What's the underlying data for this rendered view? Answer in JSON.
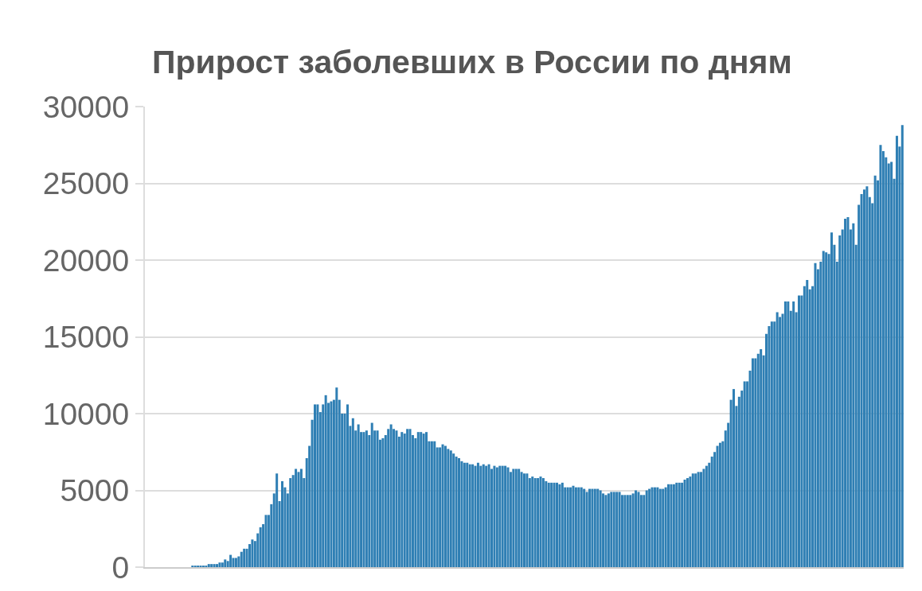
{
  "chart_data": {
    "type": "bar",
    "title": "Прирост заболевших в России по дням",
    "categories": [
      null,
      null,
      null,
      null,
      null,
      null,
      null,
      null,
      null,
      null,
      null,
      null,
      null,
      null,
      null,
      null,
      null,
      null,
      null,
      null,
      null,
      null,
      null,
      null,
      null,
      null,
      null,
      null,
      null,
      null,
      null,
      null,
      null,
      null,
      null,
      null,
      null,
      null,
      null,
      null,
      null,
      null,
      null,
      null,
      null,
      null,
      null,
      null,
      null,
      null,
      null,
      null,
      null,
      null,
      null,
      null,
      null,
      null,
      null,
      null,
      null,
      null,
      null,
      null,
      null,
      null,
      null,
      null,
      null,
      null,
      null,
      null,
      null,
      null,
      null,
      null,
      null,
      null,
      null,
      null,
      null,
      null,
      null,
      null,
      null,
      null,
      null,
      null,
      null,
      null,
      null,
      null,
      null,
      null,
      null,
      null,
      null,
      null,
      null,
      null,
      null,
      null,
      null,
      null,
      null,
      null,
      null,
      null,
      null,
      null,
      null,
      null,
      null,
      null,
      null,
      null,
      null,
      null,
      null,
      null,
      null,
      null,
      null,
      null,
      null,
      null,
      null,
      null,
      null,
      null,
      null,
      null,
      null,
      null,
      null,
      null,
      null,
      null,
      null,
      null,
      null,
      null,
      null,
      null,
      null,
      null,
      null,
      null,
      null,
      null,
      null,
      null,
      null,
      null,
      null,
      null,
      null,
      null,
      null,
      null,
      null,
      null,
      null,
      null,
      null,
      null,
      null,
      null,
      null,
      null,
      null,
      null,
      null,
      null,
      null,
      null,
      null,
      null,
      null,
      null,
      null,
      null,
      null,
      null,
      null,
      null,
      null,
      null,
      null,
      null,
      null,
      null,
      null,
      null,
      null,
      null,
      null,
      null,
      null,
      null,
      null,
      null,
      null,
      null,
      null,
      null,
      null,
      null,
      null,
      null,
      null,
      null,
      null,
      null,
      null,
      null,
      null,
      null,
      null,
      null,
      null,
      null,
      null,
      null,
      null,
      null,
      null,
      null,
      null,
      null,
      null,
      null,
      null,
      null,
      null,
      null,
      null,
      null,
      null,
      null,
      null,
      null,
      null,
      null,
      null,
      null,
      null,
      null,
      null,
      null,
      null,
      null,
      null,
      null,
      null,
      null,
      null,
      null,
      null,
      null,
      null,
      null,
      null,
      null,
      null,
      null,
      null,
      null,
      null,
      null,
      null,
      null,
      null,
      null,
      null,
      null,
      null,
      null,
      null
    ],
    "values": [
      0,
      0,
      0,
      0,
      0,
      0,
      0,
      0,
      0,
      0,
      0,
      0,
      0,
      0,
      0,
      0,
      0,
      100,
      100,
      100,
      100,
      100,
      100,
      200,
      200,
      200,
      200,
      300,
      300,
      500,
      400,
      800,
      600,
      600,
      700,
      1000,
      1200,
      1200,
      1500,
      1800,
      1700,
      2200,
      2600,
      2800,
      3400,
      3400,
      4100,
      4800,
      6100,
      4300,
      5600,
      5200,
      4800,
      5800,
      6000,
      6400,
      6200,
      6400,
      5800,
      7100,
      7900,
      9600,
      10600,
      10600,
      10100,
      10600,
      11200,
      10700,
      10800,
      10900,
      11700,
      10900,
      10000,
      10000,
      10600,
      9200,
      9700,
      8900,
      9300,
      8800,
      8800,
      8900,
      8600,
      9400,
      8900,
      8900,
      8300,
      8400,
      8600,
      9000,
      9300,
      9000,
      8900,
      8500,
      8800,
      8700,
      9000,
      9000,
      8600,
      8400,
      8800,
      8800,
      8700,
      8800,
      8200,
      8200,
      8200,
      7800,
      7800,
      8000,
      7900,
      7700,
      7600,
      7400,
      7200,
      7100,
      6900,
      6800,
      6800,
      6700,
      6700,
      6600,
      6800,
      6600,
      6700,
      6600,
      6700,
      6400,
      6600,
      6500,
      6600,
      6600,
      6600,
      6500,
      6200,
      6400,
      6400,
      6400,
      6200,
      6100,
      6100,
      5800,
      5900,
      5800,
      5800,
      5900,
      5800,
      5600,
      5500,
      5500,
      5500,
      5500,
      5400,
      5500,
      5200,
      5200,
      5200,
      5300,
      5200,
      5200,
      5200,
      5100,
      4900,
      5100,
      5100,
      5100,
      5100,
      5000,
      4800,
      4700,
      4800,
      4900,
      4900,
      4900,
      4900,
      4700,
      4700,
      4700,
      4700,
      4800,
      5000,
      4900,
      4700,
      4700,
      5000,
      5100,
      5200,
      5200,
      5200,
      5100,
      5100,
      5200,
      5400,
      5400,
      5400,
      5500,
      5500,
      5500,
      5700,
      5800,
      5900,
      6100,
      6100,
      6200,
      6200,
      6400,
      6600,
      6800,
      7200,
      7500,
      7900,
      8100,
      8200,
      8900,
      9400,
      10900,
      11600,
      10500,
      11100,
      11500,
      12100,
      12100,
      12800,
      13600,
      13600,
      13900,
      14200,
      13800,
      15200,
      15700,
      16000,
      16000,
      16600,
      16300,
      16500,
      17300,
      17300,
      16700,
      17300,
      16600,
      17700,
      17700,
      18300,
      18700,
      18100,
      18300,
      19800,
      19400,
      19900,
      20600,
      20500,
      20400,
      21800,
      21000,
      19900,
      21600,
      22000,
      22700,
      22800,
      22000,
      22400,
      21000,
      23600,
      24300,
      24600,
      24800,
      24100,
      23700,
      25500,
      25200,
      27500,
      27100,
      26700,
      26300,
      26400,
      25300,
      28100,
      27400,
      28800
    ],
    "color": "#2f7fb4",
    "ylim": [
      0,
      30000
    ],
    "yticks": [
      0,
      5000,
      10000,
      15000,
      20000,
      25000,
      30000
    ],
    "grid": "y",
    "tick_labels": "y"
  }
}
